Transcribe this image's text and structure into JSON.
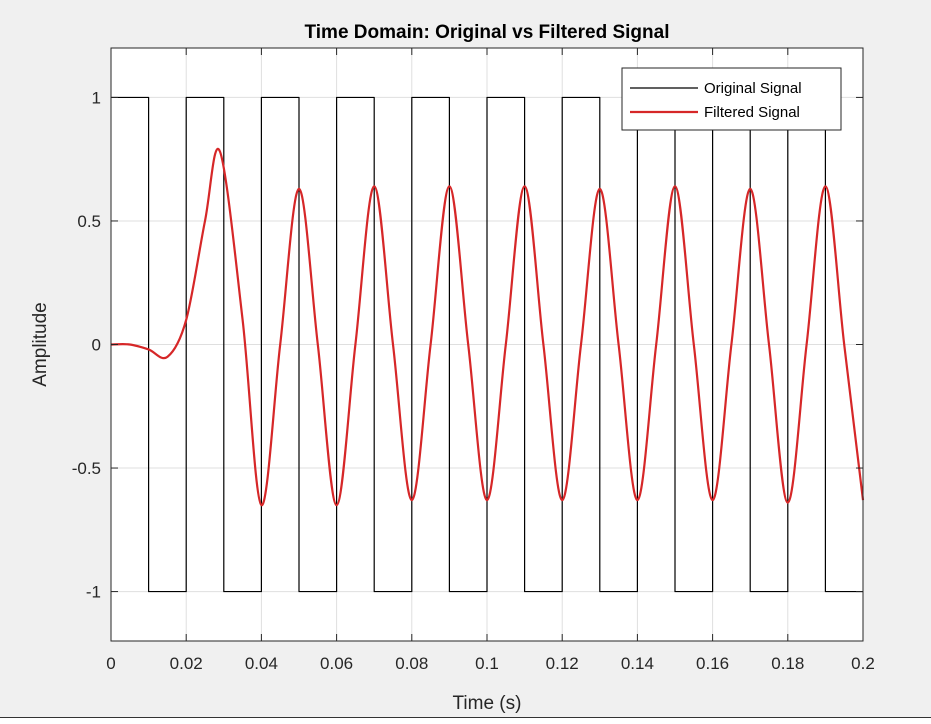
{
  "chart_data": {
    "type": "line",
    "title": "Time Domain: Original vs Filtered Signal",
    "xlabel": "Time (s)",
    "ylabel": "Amplitude",
    "xlim": [
      0,
      0.2
    ],
    "ylim": [
      -1.2,
      1.2
    ],
    "xticks": [
      0,
      0.02,
      0.04,
      0.06,
      0.08,
      0.1,
      0.12,
      0.14,
      0.16,
      0.18,
      0.2
    ],
    "xtick_labels": [
      "0",
      "0.02",
      "0.04",
      "0.06",
      "0.08",
      "0.1",
      "0.12",
      "0.14",
      "0.16",
      "0.18",
      "0.2"
    ],
    "yticks": [
      -1,
      -0.5,
      0,
      0.5,
      1
    ],
    "ytick_labels": [
      "-1",
      "-0.5",
      "0",
      "0.5",
      "1"
    ],
    "grid": true,
    "legend_position": "top-right",
    "series": [
      {
        "name": "Original Signal",
        "color": "#000000",
        "kind": "square-wave",
        "x": [
          0,
          0.01,
          0.01,
          0.02,
          0.02,
          0.03,
          0.03,
          0.04,
          0.04,
          0.05,
          0.05,
          0.06,
          0.06,
          0.07,
          0.07,
          0.08,
          0.08,
          0.09,
          0.09,
          0.1,
          0.1,
          0.11,
          0.11,
          0.12,
          0.12,
          0.13,
          0.13,
          0.14,
          0.14,
          0.15,
          0.15,
          0.16,
          0.16,
          0.17,
          0.17,
          0.18,
          0.18,
          0.19,
          0.19,
          0.2
        ],
        "y": [
          1,
          1,
          -1,
          -1,
          1,
          1,
          -1,
          -1,
          1,
          1,
          -1,
          -1,
          1,
          1,
          -1,
          -1,
          1,
          1,
          -1,
          -1,
          1,
          1,
          -1,
          -1,
          1,
          1,
          -1,
          -1,
          1,
          1,
          -1,
          -1,
          1,
          1,
          -1,
          -1,
          1,
          1,
          -1,
          -1
        ]
      },
      {
        "name": "Filtered Signal",
        "color": "#d62728",
        "kind": "smooth",
        "x": [
          0,
          0.005,
          0.01,
          0.015,
          0.02,
          0.025,
          0.029,
          0.035,
          0.04,
          0.045,
          0.05,
          0.055,
          0.06,
          0.065,
          0.07,
          0.075,
          0.08,
          0.085,
          0.09,
          0.095,
          0.1,
          0.105,
          0.11,
          0.115,
          0.12,
          0.125,
          0.13,
          0.135,
          0.14,
          0.145,
          0.15,
          0.155,
          0.16,
          0.165,
          0.17,
          0.175,
          0.18,
          0.185,
          0.19,
          0.195,
          0.2
        ],
        "y": [
          0,
          0,
          -0.02,
          -0.05,
          0.1,
          0.5,
          0.78,
          0.1,
          -0.65,
          0.0,
          0.63,
          0.0,
          -0.65,
          0.0,
          0.64,
          0.0,
          -0.63,
          0.0,
          0.64,
          0.0,
          -0.63,
          0.0,
          0.64,
          0.0,
          -0.63,
          0.0,
          0.63,
          0.0,
          -0.63,
          0.0,
          0.64,
          0.0,
          -0.63,
          0.0,
          0.63,
          0.0,
          -0.64,
          0.0,
          0.64,
          0.0,
          -0.63
        ]
      }
    ]
  }
}
